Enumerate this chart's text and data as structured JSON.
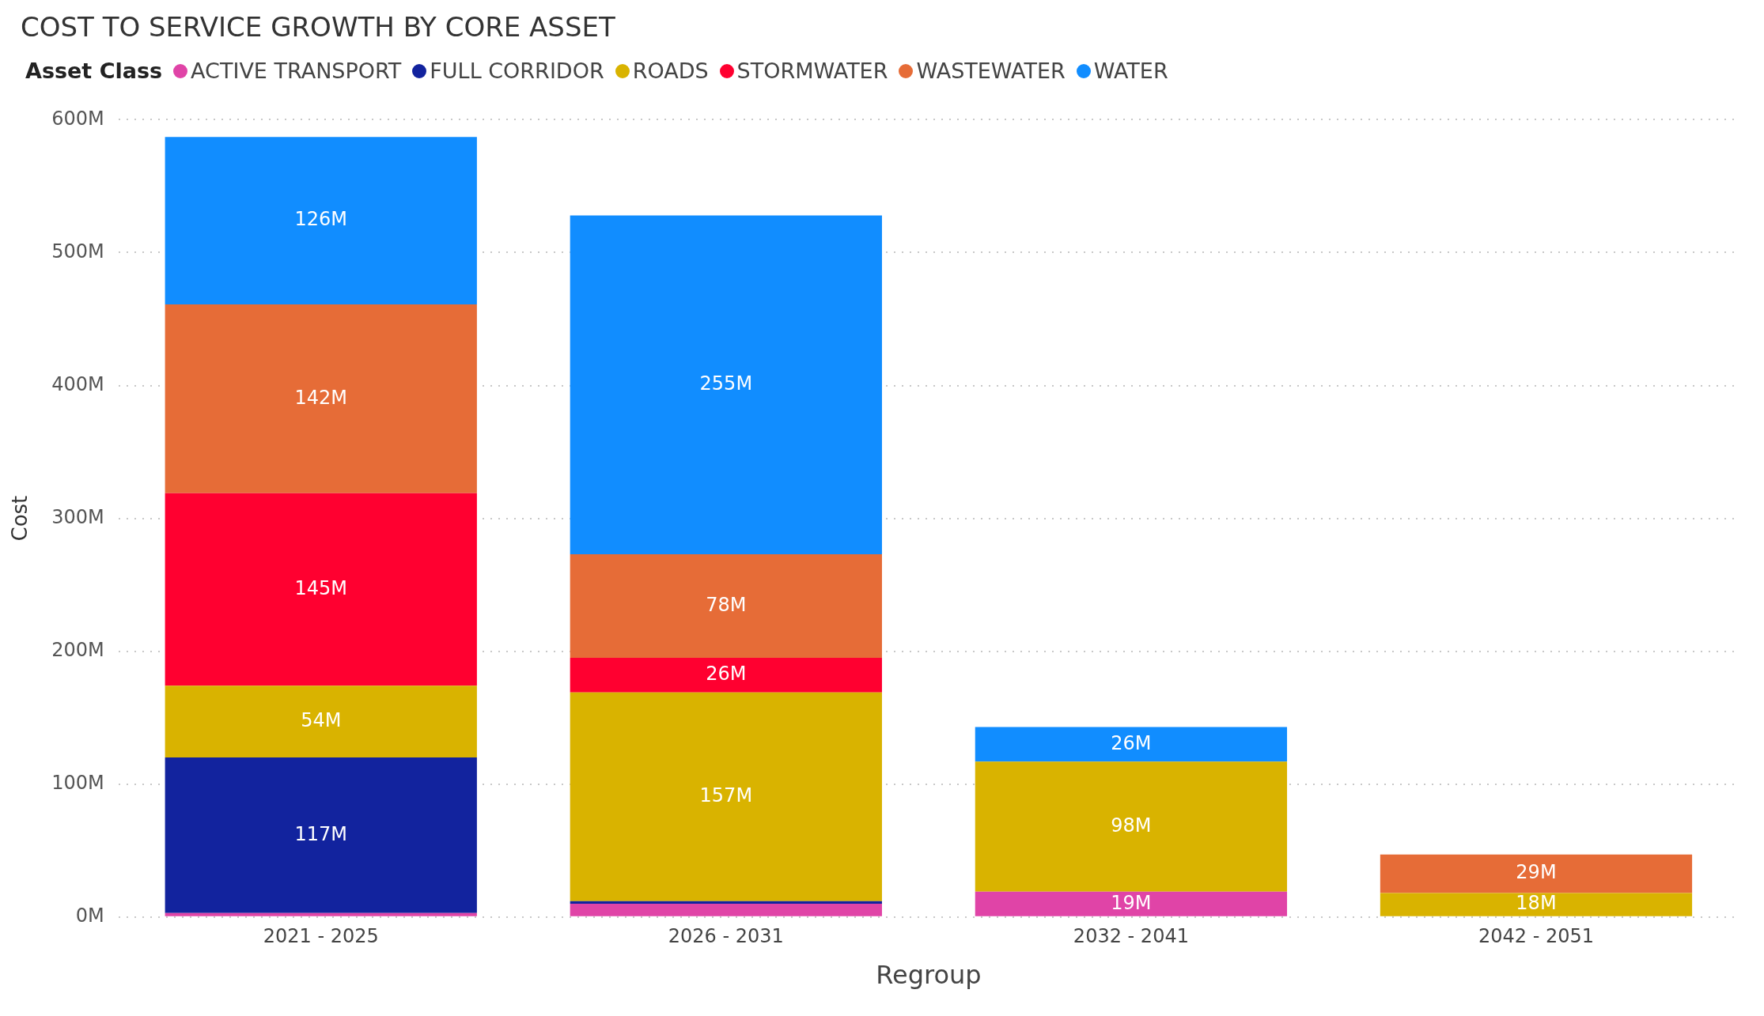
{
  "chart_data": {
    "type": "bar",
    "title": "COST TO SERVICE GROWTH BY CORE ASSET",
    "legend_title": "Asset Class",
    "xlabel": "Regroup",
    "ylabel": "Cost",
    "stacked": true,
    "legend": "top left",
    "grid": "y",
    "categories": [
      "2021 - 2025",
      "2026 - 2031",
      "2032 - 2041",
      "2042 - 2051"
    ],
    "ylim": [
      0,
      600
    ],
    "yticks": [
      {
        "value": 0,
        "label": "0M"
      },
      {
        "value": 100,
        "label": "100M"
      },
      {
        "value": 200,
        "label": "200M"
      },
      {
        "value": 300,
        "label": "300M"
      },
      {
        "value": 400,
        "label": "400M"
      },
      {
        "value": 500,
        "label": "500M"
      },
      {
        "value": 600,
        "label": "600M"
      }
    ],
    "series": [
      {
        "name": "ACTIVE TRANSPORT",
        "color": "#e044a7",
        "values": [
          3,
          10,
          19,
          null
        ],
        "value_labels": [
          null,
          null,
          "19M",
          null
        ]
      },
      {
        "name": "FULL CORRIDOR",
        "color": "#12239e",
        "values": [
          117,
          2,
          null,
          null
        ],
        "value_labels": [
          "117M",
          null,
          null,
          null
        ]
      },
      {
        "name": "ROADS",
        "color": "#d9b300",
        "values": [
          54,
          157,
          98,
          18
        ],
        "value_labels": [
          "54M",
          "157M",
          "98M",
          "18M"
        ]
      },
      {
        "name": "STORMWATER",
        "color": "#ff0030",
        "values": [
          145,
          26,
          null,
          null
        ],
        "value_labels": [
          "145M",
          "26M",
          null,
          null
        ]
      },
      {
        "name": "WASTEWATER",
        "color": "#e66c37",
        "values": [
          142,
          78,
          null,
          29
        ],
        "value_labels": [
          "142M",
          "78M",
          null,
          "29M"
        ]
      },
      {
        "name": "WATER",
        "color": "#118dff",
        "values": [
          126,
          255,
          26,
          null
        ],
        "value_labels": [
          "126M",
          "255M",
          "26M",
          null
        ]
      }
    ]
  }
}
